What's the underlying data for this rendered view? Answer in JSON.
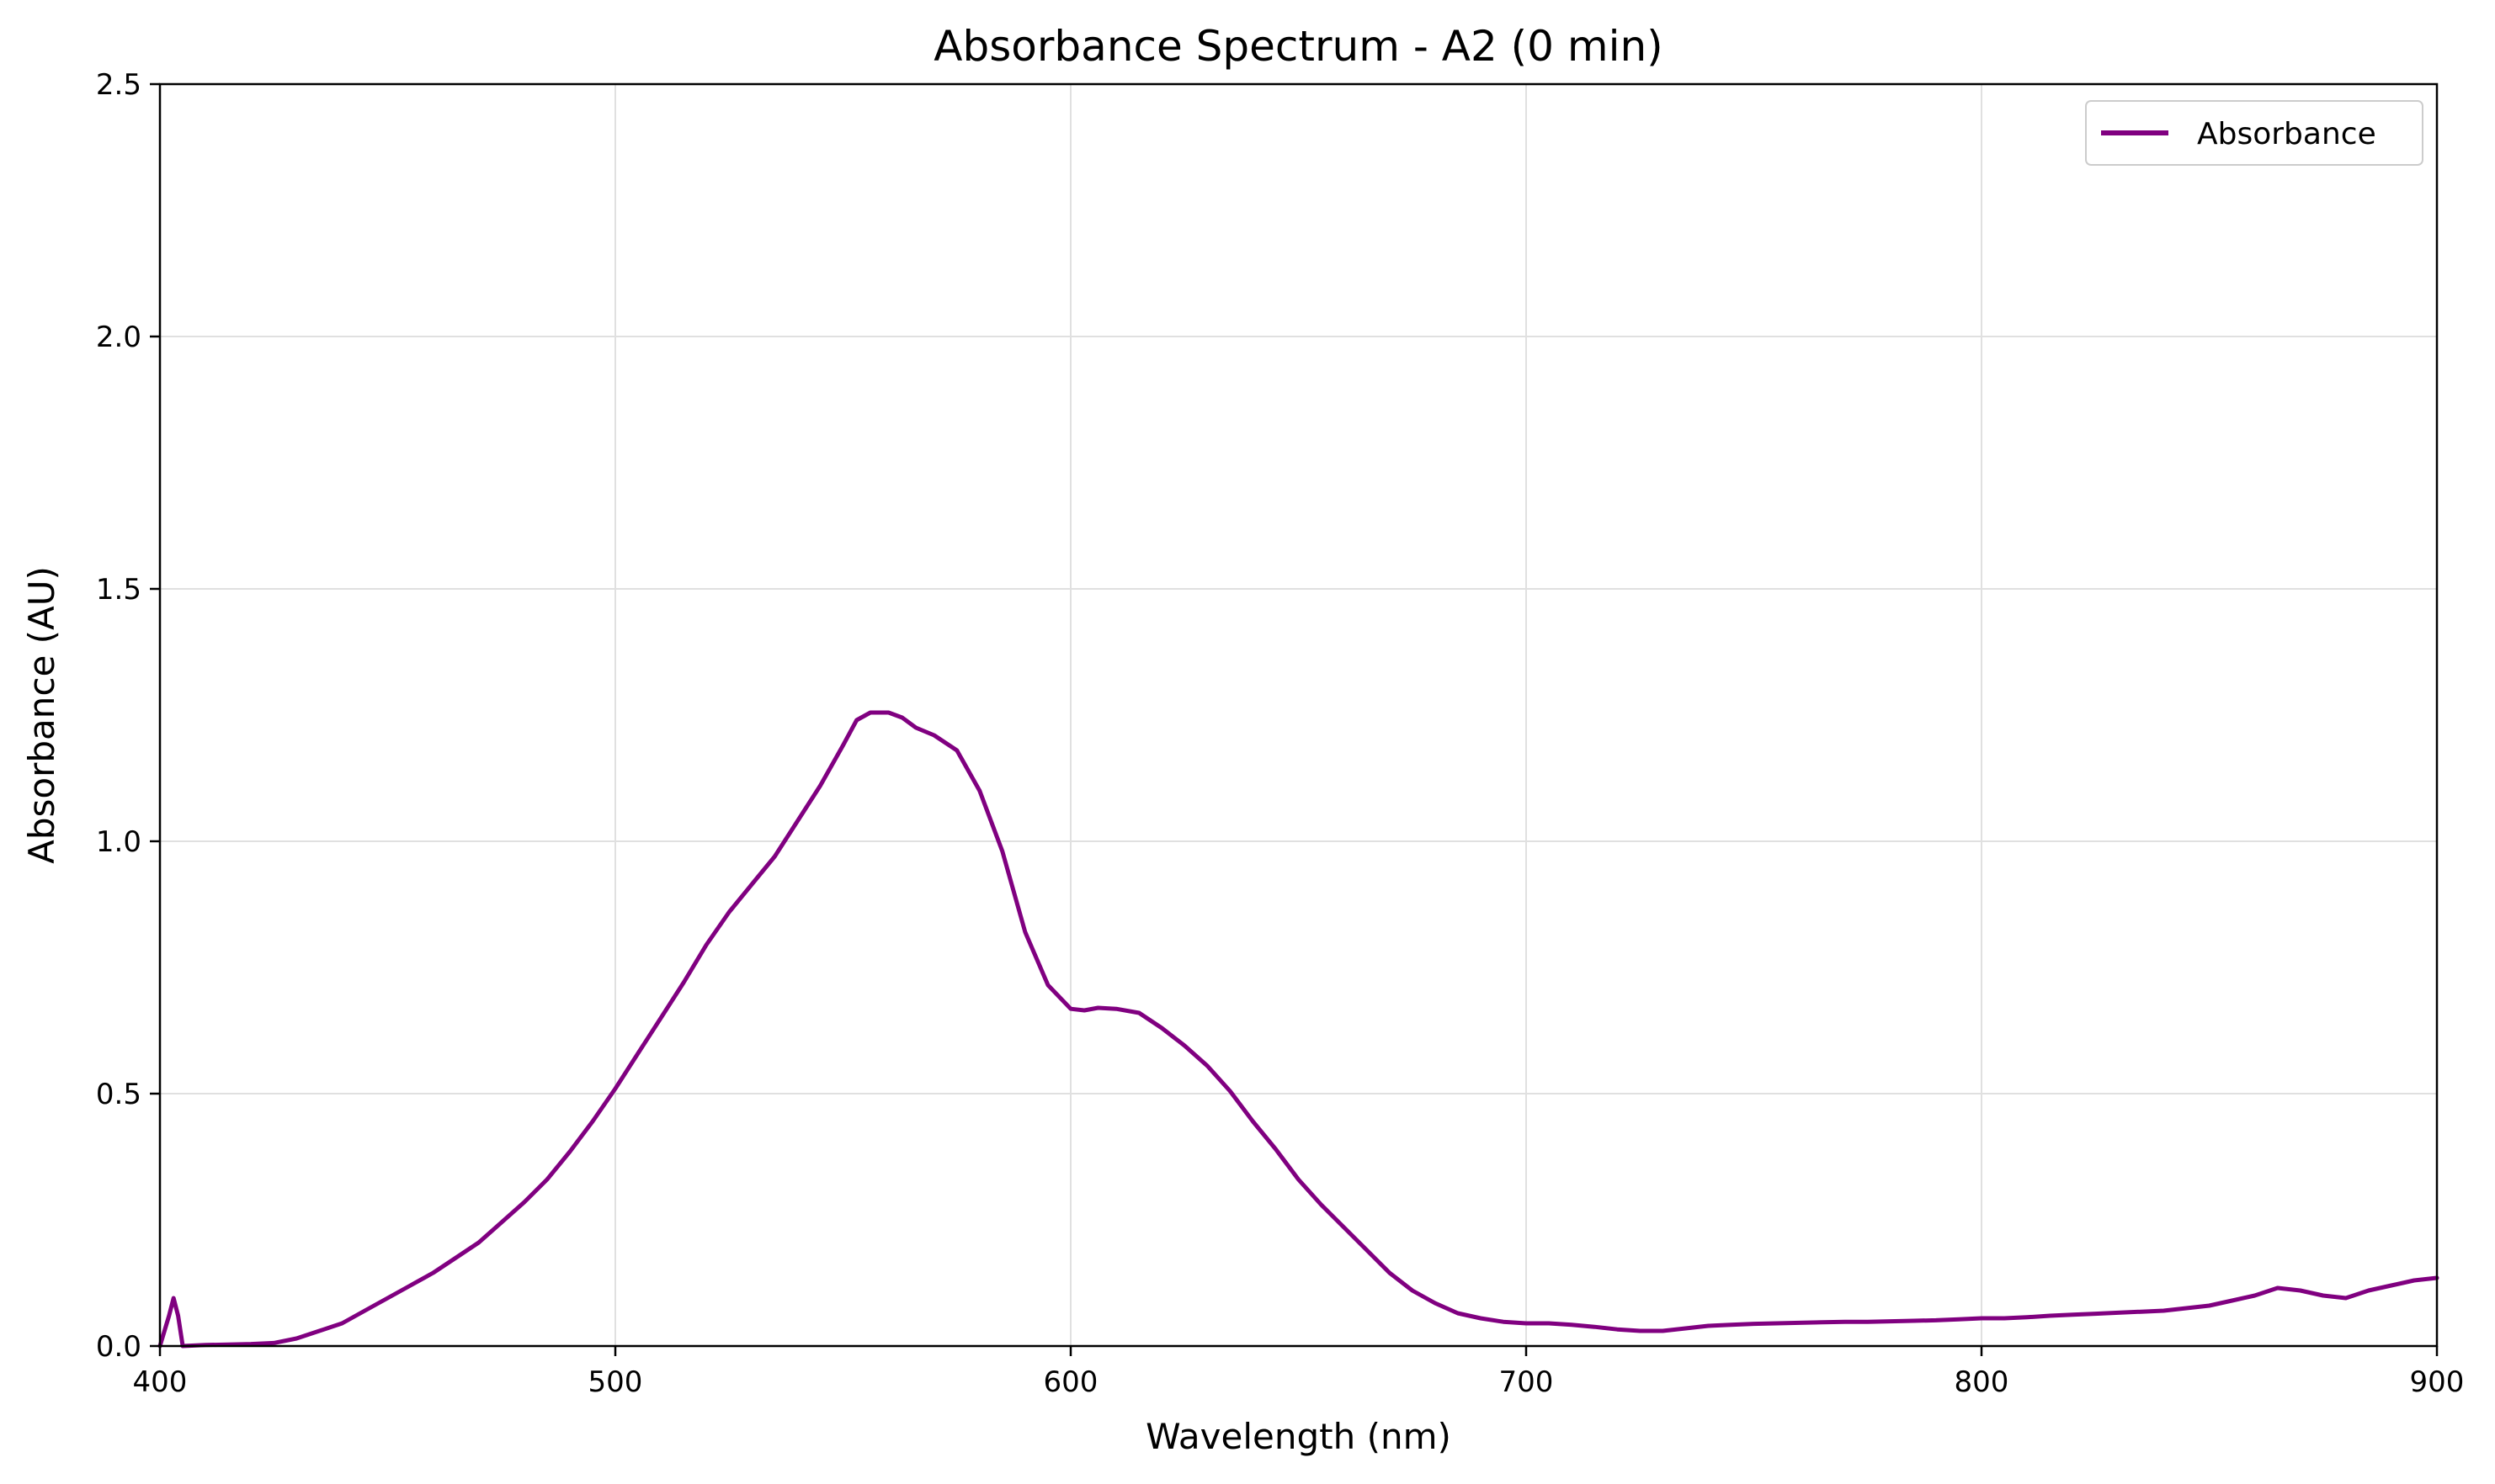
{
  "chart_data": {
    "type": "line",
    "title": "Absorbance Spectrum - A2 (0 min)",
    "xlabel": "Wavelength (nm)",
    "ylabel": "Absorbance (AU)",
    "xlim": [
      400,
      900
    ],
    "ylim": [
      0,
      2.5
    ],
    "xticks": [
      "400",
      "500",
      "600",
      "700",
      "800",
      "900"
    ],
    "yticks": [
      "0.0",
      "0.5",
      "1.0",
      "1.5",
      "2.0",
      "2.5"
    ],
    "grid": true,
    "legend_position": "top-right",
    "series": [
      {
        "name": "Absorbance",
        "color": "#800080",
        "x": [
          400,
          402,
          403,
          404,
          405,
          410,
          415,
          420,
          425,
          430,
          435,
          440,
          445,
          450,
          455,
          460,
          465,
          470,
          475,
          480,
          485,
          490,
          495,
          500,
          505,
          510,
          515,
          520,
          525,
          530,
          535,
          540,
          545,
          550,
          553,
          556,
          560,
          563,
          566,
          570,
          575,
          580,
          585,
          590,
          595,
          600,
          603,
          606,
          610,
          615,
          620,
          625,
          630,
          635,
          640,
          645,
          650,
          655,
          660,
          665,
          670,
          675,
          680,
          685,
          690,
          695,
          700,
          705,
          710,
          715,
          720,
          725,
          730,
          735,
          740,
          745,
          750,
          755,
          760,
          765,
          770,
          775,
          780,
          785,
          790,
          795,
          800,
          805,
          810,
          815,
          820,
          825,
          830,
          835,
          840,
          845,
          850,
          855,
          860,
          865,
          870,
          875,
          880,
          885,
          890,
          895,
          900
        ],
        "y": [
          0.0,
          0.06,
          0.095,
          0.06,
          0.0,
          0.002,
          0.003,
          0.004,
          0.006,
          0.015,
          0.03,
          0.045,
          0.07,
          0.095,
          0.12,
          0.145,
          0.175,
          0.205,
          0.245,
          0.285,
          0.33,
          0.385,
          0.445,
          0.51,
          0.58,
          0.65,
          0.72,
          0.795,
          0.86,
          0.915,
          0.97,
          1.04,
          1.11,
          1.19,
          1.24,
          1.255,
          1.255,
          1.245,
          1.225,
          1.21,
          1.18,
          1.1,
          0.98,
          0.82,
          0.715,
          0.668,
          0.665,
          0.67,
          0.668,
          0.66,
          0.63,
          0.595,
          0.555,
          0.505,
          0.445,
          0.39,
          0.33,
          0.28,
          0.235,
          0.19,
          0.145,
          0.11,
          0.085,
          0.065,
          0.055,
          0.048,
          0.045,
          0.045,
          0.042,
          0.038,
          0.033,
          0.03,
          0.03,
          0.035,
          0.04,
          0.042,
          0.044,
          0.045,
          0.046,
          0.047,
          0.048,
          0.048,
          0.049,
          0.05,
          0.051,
          0.053,
          0.055,
          0.055,
          0.057,
          0.06,
          0.062,
          0.064,
          0.066,
          0.068,
          0.07,
          0.075,
          0.08,
          0.09,
          0.1,
          0.115,
          0.11,
          0.1,
          0.095,
          0.11,
          0.12,
          0.13,
          0.135
        ]
      }
    ]
  }
}
